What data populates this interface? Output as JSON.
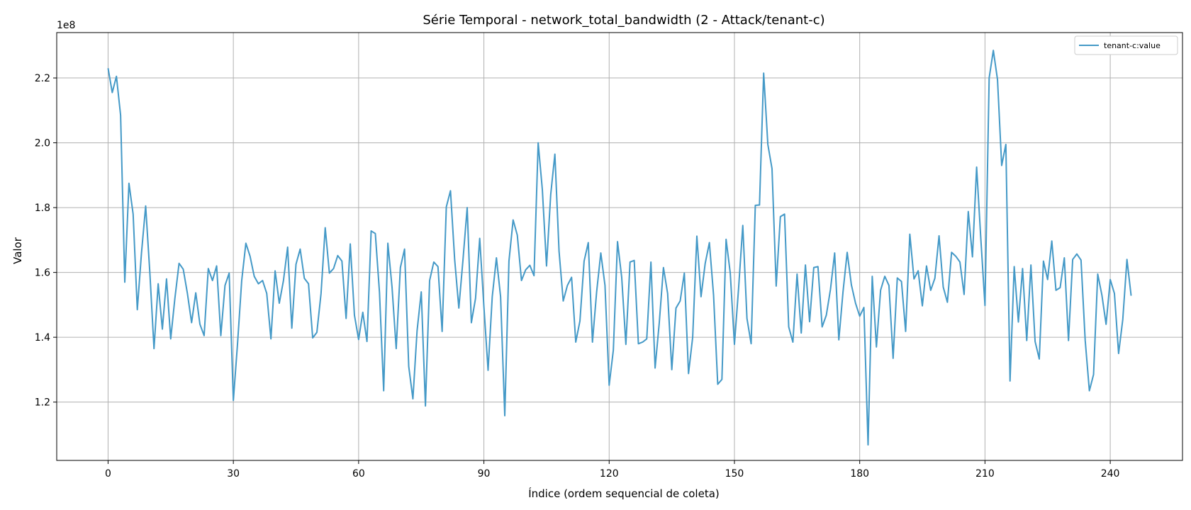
{
  "chart_data": {
    "type": "line",
    "title": "Série Temporal - network_total_bandwidth (2 - Attack/tenant-c)",
    "xlabel": "Índice (ordem sequencial de coleta)",
    "ylabel": "Valor",
    "y_scale_label": "1e8",
    "xlim": [
      -12.3,
      257.3
    ],
    "ylim": [
      1.02,
      2.34
    ],
    "x_ticks": [
      0,
      30,
      60,
      90,
      120,
      150,
      180,
      210,
      240
    ],
    "x_tick_labels": [
      "0",
      "30",
      "60",
      "90",
      "120",
      "150",
      "180",
      "210",
      "240"
    ],
    "y_ticks": [
      1.2,
      1.4,
      1.6,
      1.8,
      2.0,
      2.2
    ],
    "y_tick_labels": [
      "1.2",
      "1.4",
      "1.6",
      "1.8",
      "2.0",
      "2.2"
    ],
    "grid": true,
    "legend_position": "top-right",
    "series": [
      {
        "name": "tenant-c:value",
        "color": "#4499c7",
        "x_start": 0,
        "values": [
          2.23,
          2.155,
          2.205,
          2.085,
          1.57,
          1.875,
          1.78,
          1.485,
          1.66,
          1.805,
          1.6,
          1.365,
          1.565,
          1.425,
          1.58,
          1.395,
          1.52,
          1.628,
          1.61,
          1.535,
          1.445,
          1.537,
          1.44,
          1.405,
          1.612,
          1.575,
          1.62,
          1.405,
          1.56,
          1.598,
          1.205,
          1.38,
          1.575,
          1.69,
          1.65,
          1.588,
          1.565,
          1.575,
          1.535,
          1.395,
          1.605,
          1.505,
          1.575,
          1.678,
          1.428,
          1.625,
          1.672,
          1.582,
          1.565,
          1.398,
          1.415,
          1.535,
          1.738,
          1.598,
          1.612,
          1.652,
          1.635,
          1.458,
          1.688,
          1.468,
          1.393,
          1.477,
          1.387,
          1.728,
          1.72,
          1.538,
          1.235,
          1.69,
          1.555,
          1.365,
          1.615,
          1.672,
          1.31,
          1.21,
          1.42,
          1.54,
          1.188,
          1.575,
          1.632,
          1.618,
          1.418,
          1.802,
          1.852,
          1.64,
          1.49,
          1.64,
          1.8,
          1.445,
          1.52,
          1.705,
          1.495,
          1.298,
          1.525,
          1.645,
          1.525,
          1.158,
          1.635,
          1.762,
          1.715,
          1.575,
          1.608,
          1.622,
          1.59,
          2.0,
          1.855,
          1.62,
          1.84,
          1.965,
          1.665,
          1.512,
          1.56,
          1.585,
          1.385,
          1.45,
          1.635,
          1.692,
          1.385,
          1.54,
          1.66,
          1.56,
          1.252,
          1.36,
          1.695,
          1.585,
          1.378,
          1.632,
          1.637,
          1.38,
          1.385,
          1.395,
          1.632,
          1.305,
          1.445,
          1.615,
          1.535,
          1.3,
          1.49,
          1.512,
          1.598,
          1.288,
          1.4,
          1.712,
          1.525,
          1.628,
          1.692,
          1.53,
          1.255,
          1.27,
          1.702,
          1.598,
          1.378,
          1.552,
          1.745,
          1.458,
          1.38,
          1.807,
          1.808,
          2.215,
          1.995,
          1.92,
          1.558,
          1.772,
          1.78,
          1.432,
          1.385,
          1.595,
          1.413,
          1.623,
          1.448,
          1.615,
          1.618,
          1.432,
          1.468,
          1.548,
          1.66,
          1.392,
          1.54,
          1.662,
          1.562,
          1.505,
          1.465,
          1.492,
          1.068,
          1.588,
          1.37,
          1.545,
          1.588,
          1.56,
          1.335,
          1.583,
          1.572,
          1.418,
          1.718,
          1.58,
          1.605,
          1.497,
          1.62,
          1.545,
          1.582,
          1.713,
          1.555,
          1.508,
          1.662,
          1.65,
          1.632,
          1.532,
          1.788,
          1.648,
          1.925,
          1.705,
          1.498,
          2.2,
          2.285,
          2.195,
          1.93,
          1.995,
          1.265,
          1.618,
          1.447,
          1.612,
          1.39,
          1.623,
          1.387,
          1.333,
          1.635,
          1.578,
          1.697,
          1.545,
          1.553,
          1.645,
          1.39,
          1.64,
          1.657,
          1.638,
          1.39,
          1.235,
          1.285,
          1.595,
          1.53,
          1.44,
          1.578,
          1.535,
          1.35,
          1.455,
          1.64,
          1.528
        ]
      }
    ]
  }
}
